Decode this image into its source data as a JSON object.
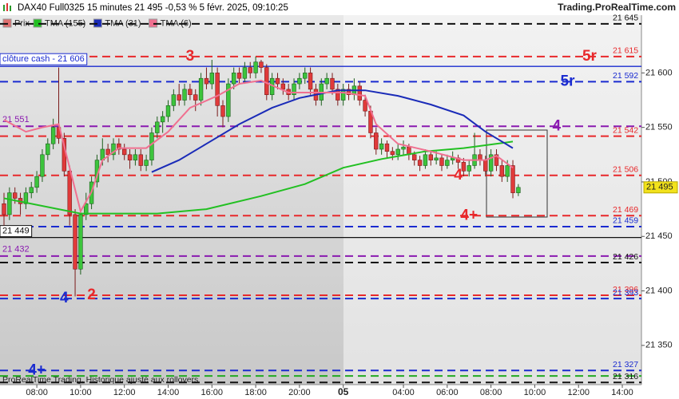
{
  "chart_data": {
    "type": "candlestick",
    "title": "DAX40 Full0325 15 minutes 21 495 -0,53 % 5 févr. 2025, 09:10:25",
    "source": "Trading.ProRealTime.com",
    "footer": "ProRealTime Trading, Historique ajusté aux rollovers",
    "price_name": "Prix",
    "up_color": "#3cc43c",
    "down_color": "#e03a3a",
    "xlim": [
      -0.73,
      116.5
    ],
    "ylim": [
      21314,
      21653
    ],
    "xticks": [
      {
        "value": 6,
        "label": "08:00"
      },
      {
        "value": 14,
        "label": "10:00"
      },
      {
        "value": 22,
        "label": "12:00"
      },
      {
        "value": 30,
        "label": "14:00"
      },
      {
        "value": 38,
        "label": "16:00"
      },
      {
        "value": 46,
        "label": "18:00"
      },
      {
        "value": 54,
        "label": "20:00"
      },
      {
        "value": 62,
        "label": "05"
      },
      {
        "value": 73,
        "label": "04:00"
      },
      {
        "value": 81,
        "label": "06:00"
      },
      {
        "value": 89,
        "label": "08:00"
      },
      {
        "value": 97,
        "label": "10:00"
      },
      {
        "value": 105,
        "label": "12:00"
      },
      {
        "value": 113,
        "label": "14:00"
      }
    ],
    "yticks": [
      {
        "value": 21600,
        "label": "21 600"
      },
      {
        "value": 21550,
        "label": "21 550"
      },
      {
        "value": 21500,
        "label": "21 500"
      },
      {
        "value": 21450,
        "label": "21 450"
      },
      {
        "value": 21400,
        "label": "21 400"
      },
      {
        "value": 21350,
        "label": "21 350"
      }
    ],
    "last_price": {
      "value": 21495,
      "label": "21 495"
    },
    "candles": [
      [
        21480,
        21490,
        21460,
        21470
      ],
      [
        21470,
        21495,
        21465,
        21490
      ],
      [
        21490,
        21495,
        21480,
        21485
      ],
      [
        21485,
        21490,
        21470,
        21480
      ],
      [
        21480,
        21495,
        21475,
        21490
      ],
      [
        21490,
        21500,
        21485,
        21495
      ],
      [
        21495,
        21510,
        21490,
        21505
      ],
      [
        21505,
        21530,
        21500,
        21525
      ],
      [
        21525,
        21540,
        21520,
        21535
      ],
      [
        21535,
        21558,
        21530,
        21550
      ],
      [
        21550,
        21605,
        21535,
        21540
      ],
      [
        21540,
        21545,
        21505,
        21510
      ],
      [
        21510,
        21515,
        21460,
        21470
      ],
      [
        21470,
        21475,
        21395,
        21420
      ],
      [
        21420,
        21475,
        21415,
        21470
      ],
      [
        21470,
        21490,
        21465,
        21480
      ],
      [
        21480,
        21505,
        21475,
        21500
      ],
      [
        21500,
        21525,
        21495,
        21520
      ],
      [
        21520,
        21540,
        21515,
        21530
      ],
      [
        21530,
        21535,
        21518,
        21525
      ],
      [
        21525,
        21540,
        21520,
        21535
      ],
      [
        21535,
        21540,
        21525,
        21530
      ],
      [
        21530,
        21535,
        21520,
        21525
      ],
      [
        21525,
        21530,
        21512,
        21520
      ],
      [
        21520,
        21530,
        21515,
        21525
      ],
      [
        21525,
        21530,
        21510,
        21515
      ],
      [
        21515,
        21525,
        21510,
        21520
      ],
      [
        21520,
        21550,
        21515,
        21545
      ],
      [
        21545,
        21560,
        21540,
        21555
      ],
      [
        21555,
        21565,
        21545,
        21560
      ],
      [
        21560,
        21575,
        21555,
        21570
      ],
      [
        21570,
        21585,
        21565,
        21580
      ],
      [
        21580,
        21590,
        21570,
        21575
      ],
      [
        21575,
        21590,
        21570,
        21585
      ],
      [
        21585,
        21590,
        21575,
        21580
      ],
      [
        21580,
        21585,
        21565,
        21575
      ],
      [
        21575,
        21600,
        21570,
        21595
      ],
      [
        21595,
        21605,
        21585,
        21590
      ],
      [
        21590,
        21612,
        21585,
        21600
      ],
      [
        21600,
        21605,
        21560,
        21570
      ],
      [
        21570,
        21575,
        21550,
        21560
      ],
      [
        21560,
        21595,
        21555,
        21590
      ],
      [
        21590,
        21605,
        21585,
        21600
      ],
      [
        21600,
        21605,
        21590,
        21595
      ],
      [
        21595,
        21610,
        21590,
        21605
      ],
      [
        21605,
        21610,
        21595,
        21600
      ],
      [
        21600,
        21615,
        21595,
        21610
      ],
      [
        21610,
        21612,
        21600,
        21605
      ],
      [
        21605,
        21608,
        21575,
        21580
      ],
      [
        21580,
        21600,
        21575,
        21595
      ],
      [
        21595,
        21600,
        21585,
        21590
      ],
      [
        21590,
        21595,
        21580,
        21585
      ],
      [
        21585,
        21590,
        21575,
        21580
      ],
      [
        21580,
        21595,
        21575,
        21590
      ],
      [
        21590,
        21600,
        21585,
        21595
      ],
      [
        21595,
        21605,
        21590,
        21600
      ],
      [
        21600,
        21605,
        21580,
        21585
      ],
      [
        21585,
        21590,
        21570,
        21575
      ],
      [
        21575,
        21595,
        21570,
        21590
      ],
      [
        21590,
        21600,
        21585,
        21595
      ],
      [
        21595,
        21600,
        21580,
        21585
      ],
      [
        21585,
        21590,
        21570,
        21575
      ],
      [
        21575,
        21590,
        21570,
        21585
      ],
      [
        21585,
        21590,
        21575,
        21580
      ],
      [
        21580,
        21595,
        21575,
        21588
      ],
      [
        21588,
        21592,
        21570,
        21575
      ],
      [
        21575,
        21580,
        21560,
        21565
      ],
      [
        21565,
        21570,
        21540,
        21545
      ],
      [
        21545,
        21550,
        21525,
        21530
      ],
      [
        21530,
        21540,
        21525,
        21535
      ],
      [
        21535,
        21538,
        21522,
        21528
      ],
      [
        21528,
        21532,
        21520,
        21525
      ],
      [
        21525,
        21535,
        21520,
        21530
      ],
      [
        21530,
        21538,
        21525,
        21532
      ],
      [
        21532,
        21535,
        21520,
        21525
      ],
      [
        21525,
        21528,
        21515,
        21520
      ],
      [
        21520,
        21524,
        21510,
        21515
      ],
      [
        21515,
        21530,
        21512,
        21525
      ],
      [
        21525,
        21528,
        21515,
        21520
      ],
      [
        21520,
        21528,
        21516,
        21522
      ],
      [
        21522,
        21525,
        21510,
        21515
      ],
      [
        21515,
        21525,
        21512,
        21520
      ],
      [
        21520,
        21528,
        21516,
        21522
      ],
      [
        21522,
        21525,
        21512,
        21518
      ],
      [
        21518,
        21522,
        21505,
        21510
      ],
      [
        21510,
        21520,
        21505,
        21515
      ],
      [
        21515,
        21545,
        21512,
        21525
      ],
      [
        21525,
        21530,
        21515,
        21520
      ],
      [
        21520,
        21524,
        21505,
        21510
      ],
      [
        21510,
        21530,
        21505,
        21525
      ],
      [
        21525,
        21530,
        21510,
        21515
      ],
      [
        21515,
        21520,
        21500,
        21505
      ],
      [
        21505,
        21520,
        21500,
        21515
      ],
      [
        21515,
        21520,
        21485,
        21490
      ],
      [
        21490,
        21498,
        21487,
        21495
      ]
    ],
    "series": [
      {
        "name": "TMA (155)",
        "color": "#22c022",
        "x": [
          0,
          14,
          28,
          37,
          47,
          55,
          62,
          69,
          77,
          84,
          93
        ],
        "values": [
          21485,
          21471,
          21471,
          21475,
          21487,
          21498,
          21513,
          21521,
          21528,
          21531,
          21537
        ]
      },
      {
        "name": "TMA (31)",
        "color": "#1a2bb8",
        "x": [
          27,
          32,
          37,
          43,
          49,
          54,
          61,
          66,
          72,
          78,
          84,
          88,
          93
        ],
        "values": [
          21509,
          21520,
          21535,
          21553,
          21568,
          21577,
          21584,
          21584,
          21579,
          21571,
          21561,
          21546,
          21531
        ]
      },
      {
        "name": "TMA (6)",
        "color": "#f07090",
        "x": [
          0,
          4,
          7,
          10,
          12,
          14,
          16,
          18,
          21,
          26,
          30,
          34,
          39,
          43,
          47,
          52,
          56,
          62,
          66,
          68,
          72,
          78,
          84,
          88,
          90,
          93
        ],
        "values": [
          21557,
          21546,
          21550,
          21553,
          21513,
          21473,
          21491,
          21520,
          21531,
          21531,
          21546,
          21568,
          21579,
          21590,
          21593,
          21582,
          21582,
          21582,
          21579,
          21553,
          21535,
          21528,
          21520,
          21520,
          21524,
          21513
        ]
      }
    ],
    "levels": [
      {
        "value": 21645,
        "label": "21 645",
        "color": "#111111",
        "dashed": true,
        "side": "right"
      },
      {
        "value": 21615,
        "label": "21 615",
        "color": "#e8282b",
        "dashed": true,
        "side": "right"
      },
      {
        "value": 21606,
        "label": "clôture cash -  21 606",
        "color": "#1a2bd0",
        "dashed": false,
        "side": "left"
      },
      {
        "value": 21592,
        "label": "21 592",
        "color": "#1a2bd0",
        "dashed": true,
        "side": "right"
      },
      {
        "value": 21551,
        "label": "21 551",
        "color": "#8a1ab0",
        "dashed": true,
        "side": "left"
      },
      {
        "value": 21542,
        "label": "21 542",
        "color": "#e8282b",
        "dashed": true,
        "side": "right"
      },
      {
        "value": 21506,
        "label": "21 506",
        "color": "#e8282b",
        "dashed": true,
        "side": "right"
      },
      {
        "value": 21469,
        "label": "21 469",
        "color": "#e8282b",
        "dashed": true,
        "side": "right"
      },
      {
        "value": 21459,
        "label": "21 459",
        "color": "#1a2bd0",
        "dashed": true,
        "side": "right"
      },
      {
        "value": 21449,
        "label": "21 449",
        "color": "#111111",
        "dashed": false,
        "side": "left"
      },
      {
        "value": 21432,
        "label": "21 432",
        "color": "#8a1ab0",
        "dashed": true,
        "side": "left"
      },
      {
        "value": 21426,
        "label": "21 426",
        "color": "#111111",
        "dashed": true,
        "side": "right"
      },
      {
        "value": 21396,
        "label": "21 396",
        "color": "#e8282b",
        "dashed": true,
        "side": "right"
      },
      {
        "value": 21393,
        "label": "21 393",
        "color": "#1a2bd0",
        "dashed": true,
        "side": "right"
      },
      {
        "value": 21327,
        "label": "21 327",
        "color": "#1a2bd0",
        "dashed": true,
        "side": "right"
      },
      {
        "value": 21322,
        "color": "#22aa22",
        "dashed": true,
        "side": "right"
      },
      {
        "value": 21316,
        "label": "21 316",
        "color": "#111111",
        "dashed": true,
        "side": "right"
      }
    ],
    "annotations": [
      {
        "text": "3",
        "x": 34,
        "y": 21615,
        "color": "#e8282b"
      },
      {
        "text": "5r",
        "x": 107,
        "y": 21615,
        "color": "#e8282b"
      },
      {
        "text": "5r",
        "x": 103,
        "y": 21592,
        "color": "#1a2bd0"
      },
      {
        "text": "4",
        "x": 101,
        "y": 21551,
        "color": "#8a1ab0"
      },
      {
        "text": "4",
        "x": 83,
        "y": 21506,
        "color": "#e8282b"
      },
      {
        "text": "4+",
        "x": 85,
        "y": 21469,
        "color": "#e8282b"
      },
      {
        "text": "4",
        "x": 11,
        "y": 21393,
        "color": "#1a2bd0"
      },
      {
        "text": "2",
        "x": 16,
        "y": 21396,
        "color": "#e8282b"
      },
      {
        "text": "4+",
        "x": 6,
        "y": 21327,
        "color": "#1a2bd0"
      }
    ]
  }
}
